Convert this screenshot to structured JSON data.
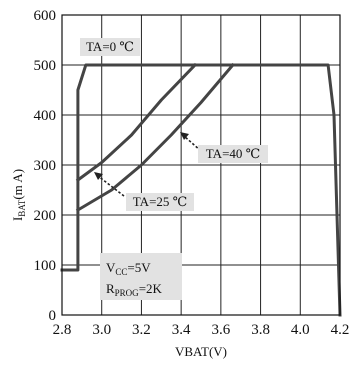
{
  "chart_data": {
    "type": "line",
    "xlabel": "VBAT(V)",
    "ylabel_main": "I",
    "ylabel_sub": "BAT",
    "ylabel_unit": "(m A)",
    "xlim": [
      2.8,
      4.2
    ],
    "ylim": [
      0,
      600
    ],
    "x_ticks": [
      "2.8",
      "3.0",
      "3.2",
      "3.4",
      "3.6",
      "3.8",
      "4.0",
      "4.2"
    ],
    "y_ticks": [
      "0",
      "100",
      "200",
      "300",
      "400",
      "500",
      "600"
    ],
    "grid": true,
    "series": [
      {
        "name": "TA=0 ℃",
        "points": [
          [
            2.8,
            90
          ],
          [
            2.88,
            90
          ],
          [
            2.88,
            450
          ],
          [
            2.92,
            500
          ],
          [
            4.14,
            500
          ],
          [
            4.17,
            400
          ],
          [
            4.2,
            0
          ]
        ]
      },
      {
        "name": "TA=25 ℃",
        "points": [
          [
            2.88,
            270
          ],
          [
            3.0,
            305
          ],
          [
            3.15,
            360
          ],
          [
            3.3,
            430
          ],
          [
            3.47,
            500
          ]
        ]
      },
      {
        "name": "TA=40 ℃",
        "points": [
          [
            2.88,
            210
          ],
          [
            3.05,
            250
          ],
          [
            3.2,
            300
          ],
          [
            3.35,
            360
          ],
          [
            3.5,
            425
          ],
          [
            3.66,
            500
          ]
        ]
      }
    ],
    "annotations": {
      "ta0": "TA=0 ℃",
      "ta25": "TA=25 ℃",
      "ta40": "TA=40 ℃"
    },
    "conditions": {
      "vcc_main": "V",
      "vcc_sub": "CC",
      "vcc_value": "=5V",
      "rprog_main": "R",
      "rprog_sub": "PROG",
      "rprog_value": "=2K"
    }
  }
}
